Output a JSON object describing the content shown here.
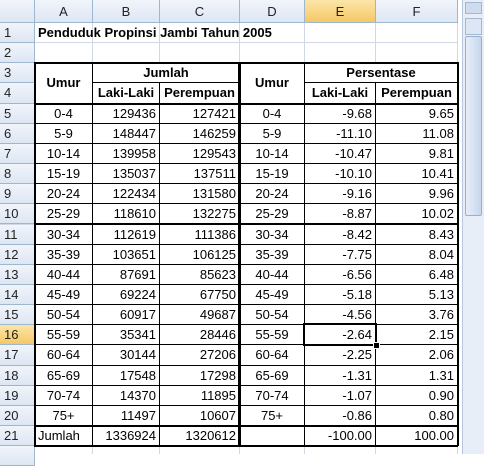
{
  "column_letters": [
    "A",
    "B",
    "C",
    "D",
    "E",
    "F"
  ],
  "row_numbers": [
    "1",
    "2",
    "3",
    "4",
    "5",
    "6",
    "7",
    "8",
    "9",
    "10",
    "11",
    "12",
    "13",
    "14",
    "15",
    "16",
    "17",
    "18",
    "19",
    "20",
    "21"
  ],
  "title": "Penduduk Propinsi Jambi Tahun 2005",
  "headers": {
    "umur_left": "Umur",
    "jumlah": "Jumlah",
    "laki_left": "Laki-Laki",
    "perempuan_left": "Perempuan",
    "umur_right": "Umur",
    "persentase": "Persentase",
    "laki_right": "Laki-Laki",
    "perempuan_right": "Perempuan"
  },
  "data_rows": [
    [
      "0-4",
      "129436",
      "127421",
      "0-4",
      "-9.68",
      "9.65"
    ],
    [
      "5-9",
      "148447",
      "146259",
      "5-9",
      "-11.10",
      "11.08"
    ],
    [
      "10-14",
      "139958",
      "129543",
      "10-14",
      "-10.47",
      "9.81"
    ],
    [
      "15-19",
      "135037",
      "137511",
      "15-19",
      "-10.10",
      "10.41"
    ],
    [
      "20-24",
      "122434",
      "131580",
      "20-24",
      "-9.16",
      "9.96"
    ],
    [
      "25-29",
      "118610",
      "132275",
      "25-29",
      "-8.87",
      "10.02"
    ],
    [
      "30-34",
      "112619",
      "111386",
      "30-34",
      "-8.42",
      "8.43"
    ],
    [
      "35-39",
      "103651",
      "106125",
      "35-39",
      "-7.75",
      "8.04"
    ],
    [
      "40-44",
      "87691",
      "85623",
      "40-44",
      "-6.56",
      "6.48"
    ],
    [
      "45-49",
      "69224",
      "67750",
      "45-49",
      "-5.18",
      "5.13"
    ],
    [
      "50-54",
      "60917",
      "49687",
      "50-54",
      "-4.56",
      "3.76"
    ],
    [
      "55-59",
      "35341",
      "28446",
      "55-59",
      "-2.64",
      "2.15"
    ],
    [
      "60-64",
      "30144",
      "27206",
      "60-64",
      "-2.25",
      "2.06"
    ],
    [
      "65-69",
      "17548",
      "17298",
      "65-69",
      "-1.31",
      "1.31"
    ],
    [
      "70-74",
      "14370",
      "11895",
      "70-74",
      "-1.07",
      "0.90"
    ],
    [
      "75+",
      "11497",
      "10607",
      "75+",
      "-0.86",
      "0.80"
    ]
  ],
  "total": {
    "label": "Jumlah",
    "laki": "1336924",
    "perempuan": "1320612",
    "pct_laki": "-100.00",
    "pct_perempuan": "100.00"
  }
}
